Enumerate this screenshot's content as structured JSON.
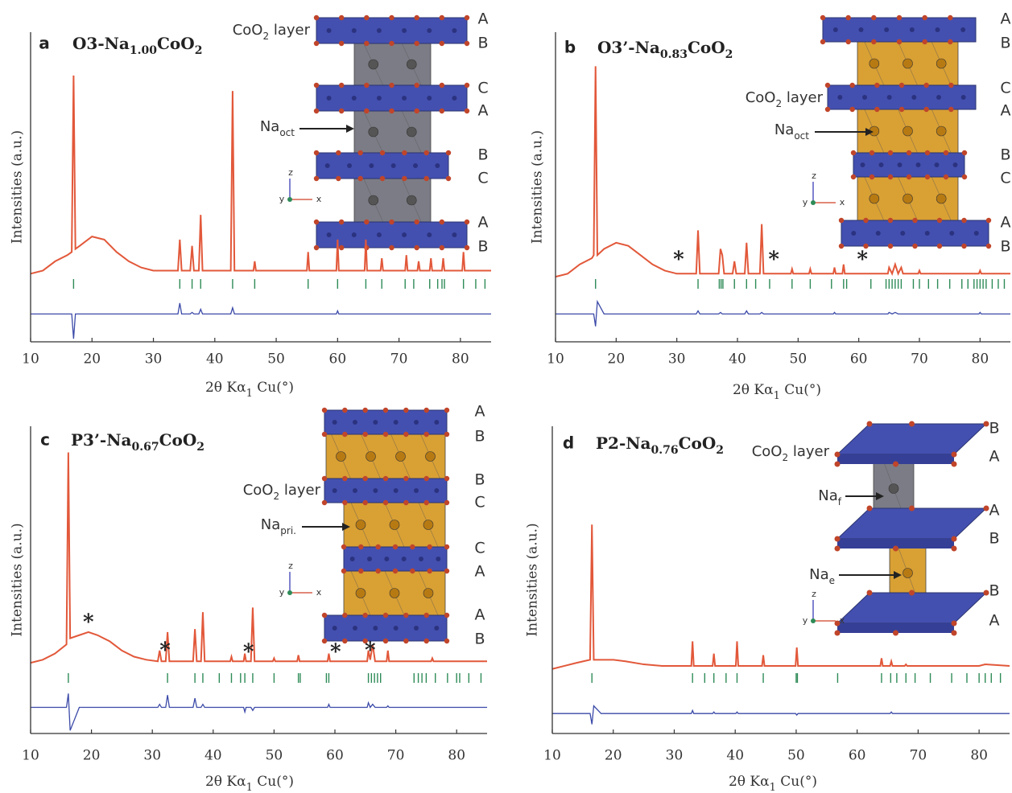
{
  "chart_data": [
    {
      "type": "line",
      "label": "a",
      "title": [
        {
          "text": "O3-Na"
        },
        {
          "text": "1.00",
          "sub": true
        },
        {
          "text": "CoO"
        },
        {
          "text": "2",
          "sub": true
        }
      ],
      "x_label": [
        {
          "text": "2θ Kα"
        },
        {
          "text": "1",
          "sub": true
        },
        {
          "text": " Cu(°)"
        }
      ],
      "y_label": "Intensities (a.u.)",
      "xlim": [
        10,
        85
      ],
      "xticks": [
        10,
        20,
        30,
        40,
        50,
        60,
        70,
        80
      ],
      "ylim": [
        0,
        100
      ],
      "x": [
        10,
        12,
        14,
        16,
        16.7,
        17.0,
        17.3,
        18,
        20,
        22,
        24,
        26,
        28,
        30,
        34.0,
        34.3,
        34.6,
        36.0,
        36.3,
        36.6,
        37.4,
        37.7,
        38.0,
        42.6,
        42.9,
        43.2,
        46.3,
        46.5,
        46.7,
        55.0,
        55.2,
        55.4,
        59.8,
        60.0,
        60.2,
        64.4,
        64.6,
        64.8,
        67.0,
        67.2,
        67.4,
        71.0,
        71.2,
        71.4,
        73.0,
        73.2,
        73.4,
        75.0,
        75.2,
        75.4,
        77.0,
        77.2,
        77.4,
        80.3,
        80.5,
        80.7,
        85
      ],
      "series": [
        {
          "color": "#e2583a",
          "values": [
            22,
            23,
            26,
            28,
            29,
            86,
            30,
            31,
            34,
            33,
            29,
            26,
            24,
            23,
            23,
            33,
            23,
            23,
            31,
            23,
            23,
            41,
            23,
            23,
            81,
            23,
            23,
            26,
            23,
            23,
            29,
            23,
            23,
            33,
            23,
            23,
            33,
            23,
            23,
            27,
            23,
            23,
            28,
            23,
            23,
            26,
            23,
            23,
            27,
            23,
            23,
            27,
            23,
            23,
            29,
            23,
            23
          ]
        },
        {
          "color": "#3b4aa8",
          "values": [
            9,
            9,
            9,
            9,
            9,
            1,
            9,
            9,
            9,
            9,
            9,
            9,
            9,
            9,
            9,
            12.5,
            9,
            9,
            9.5,
            9,
            9,
            10.5,
            9,
            9,
            11,
            9,
            9,
            9,
            9,
            9,
            9,
            9,
            9,
            10,
            9,
            9,
            9,
            9,
            9,
            9,
            9,
            9,
            9,
            9,
            9,
            9,
            9,
            9,
            9,
            9,
            9,
            9,
            9,
            9,
            9,
            9,
            9
          ]
        }
      ],
      "bragg": {
        "color": "#2e8b57",
        "positions": [
          17,
          34.3,
          36.3,
          37.7,
          42.9,
          46.5,
          55.2,
          60,
          64.6,
          67.2,
          71,
          72.4,
          75,
          76.3,
          77,
          77.4,
          80.5,
          82.5,
          84
        ]
      },
      "annotations": [],
      "structure": {
        "layer_label": [
          {
            "text": "CoO"
          },
          {
            "text": "2",
            "sub": true
          },
          {
            "text": " layer"
          }
        ],
        "site_labels": [
          [
            {
              "text": "Na"
            },
            {
              "text": "oct",
              "sub": true
            }
          ]
        ],
        "stacking": [
          "A",
          "B",
          "C",
          "A",
          "B",
          "C",
          "A",
          "B"
        ],
        "axes": [
          "z",
          "y",
          "x"
        ]
      }
    },
    {
      "type": "line",
      "label": "b",
      "title": [
        {
          "text": "O3’-Na"
        },
        {
          "text": "0.83",
          "sub": true
        },
        {
          "text": "CoO"
        },
        {
          "text": "2",
          "sub": true
        }
      ],
      "x_label": [
        {
          "text": "2θ Kα"
        },
        {
          "text": "1",
          "sub": true
        },
        {
          "text": " Cu(°)"
        }
      ],
      "y_label": "Intensities (a.u.)",
      "xlim": [
        10,
        85
      ],
      "xticks": [
        10,
        20,
        30,
        40,
        50,
        60,
        70,
        80
      ],
      "ylim": [
        0,
        100
      ],
      "x": [
        10,
        12,
        14,
        16,
        16.3,
        16.6,
        16.9,
        18,
        20,
        22,
        24,
        26,
        28,
        30,
        33.2,
        33.5,
        33.8,
        36.9,
        37.2,
        37.5,
        37.8,
        39.2,
        39.5,
        39.8,
        41.2,
        41.5,
        41.8,
        43.7,
        44.0,
        44.3,
        48.8,
        49.0,
        49.2,
        51.8,
        52.0,
        52.2,
        55.8,
        56.0,
        56.2,
        57.3,
        57.5,
        57.7,
        64.8,
        65.0,
        65.5,
        66.0,
        66.5,
        67.0,
        67.3,
        69.8,
        70.0,
        70.2,
        79.8,
        80.0,
        80.2,
        85
      ],
      "series": [
        {
          "color": "#e2583a",
          "values": [
            21,
            22,
            25,
            27,
            28,
            89,
            28,
            30,
            32,
            31,
            28,
            25,
            23,
            22,
            22,
            36,
            22,
            22,
            30,
            28,
            22,
            22,
            26,
            22,
            22,
            32,
            22,
            22,
            38,
            22,
            22,
            23.5,
            22,
            22,
            23.5,
            22,
            22,
            24,
            22,
            22,
            25,
            22,
            22,
            24,
            22,
            25,
            22,
            24,
            22,
            22,
            23,
            22,
            22,
            23,
            22,
            22
          ]
        },
        {
          "color": "#3b4aa8",
          "values": [
            9,
            9,
            9,
            9,
            9,
            5,
            13,
            9,
            9,
            9,
            9,
            9,
            9,
            9,
            9,
            10,
            9,
            9,
            9.5,
            9,
            9,
            9,
            9,
            9,
            9,
            10,
            9,
            9,
            9.5,
            9,
            9,
            9,
            9,
            9,
            9,
            9,
            9,
            9.5,
            9,
            9,
            9,
            9,
            9,
            9.5,
            9,
            9.5,
            9,
            9,
            9,
            9,
            9,
            9,
            9,
            9.5,
            9,
            9
          ]
        }
      ],
      "bragg": {
        "color": "#2e8b57",
        "positions": [
          16.6,
          33.5,
          37,
          37.3,
          37.6,
          39.5,
          41.5,
          43,
          45.3,
          49,
          52,
          55.5,
          57.5,
          58,
          62,
          64.5,
          65,
          65.5,
          66,
          66.5,
          67,
          69,
          70,
          71.5,
          73,
          75,
          77,
          78,
          79,
          79.5,
          80,
          80.5,
          81,
          82,
          83,
          84
        ]
      },
      "annotations": [
        {
          "text": "*",
          "x": 30.3,
          "y": 26.8
        },
        {
          "text": "*",
          "x": 46,
          "y": 26.8
        },
        {
          "text": "*",
          "x": 60.6,
          "y": 26.8
        }
      ],
      "structure": {
        "layer_label": [
          {
            "text": "CoO"
          },
          {
            "text": "2",
            "sub": true
          },
          {
            "text": " layer"
          }
        ],
        "site_labels": [
          [
            {
              "text": "Na"
            },
            {
              "text": "oct",
              "sub": true
            }
          ]
        ],
        "stacking": [
          "A",
          "B",
          "C",
          "A",
          "B",
          "C",
          "A",
          "B"
        ],
        "axes": [
          "z",
          "y",
          "x"
        ]
      }
    },
    {
      "type": "line",
      "label": "c",
      "title": [
        {
          "text": "P3’-Na"
        },
        {
          "text": "0.67",
          "sub": true
        },
        {
          "text": "CoO"
        },
        {
          "text": "2",
          "sub": true
        }
      ],
      "x_label": [
        {
          "text": "2θ Kα"
        },
        {
          "text": "1",
          "sub": true
        },
        {
          "text": " Cu(°)"
        }
      ],
      "y_label": "Intensities (a.u.)",
      "xlim": [
        10,
        85
      ],
      "xticks": [
        10,
        20,
        30,
        40,
        50,
        60,
        70,
        80
      ],
      "ylim": [
        0,
        100
      ],
      "x": [
        10,
        12,
        14,
        15.9,
        16.2,
        16.5,
        18,
        19.5,
        21,
        23,
        25,
        27,
        29,
        30.9,
        31.2,
        31.5,
        32.2,
        32.5,
        32.8,
        36.7,
        37.0,
        37.3,
        38.0,
        38.3,
        38.6,
        42.8,
        43.0,
        43.2,
        45.0,
        45.2,
        45.4,
        46.2,
        46.5,
        46.8,
        49.8,
        50.0,
        50.2,
        53.8,
        54.0,
        54.2,
        58.8,
        59.0,
        59.2,
        65.3,
        65.5,
        65.8,
        66.2,
        66.6,
        68.5,
        68.7,
        68.9,
        75.8,
        76.0,
        76.2,
        85
      ],
      "series": [
        {
          "color": "#e2583a",
          "values": [
            23,
            24,
            26,
            29,
            91.5,
            31,
            32,
            33,
            32,
            30,
            27,
            25,
            24,
            23.5,
            27,
            23.5,
            23.5,
            33,
            23.5,
            23.5,
            34,
            23.5,
            23.5,
            39.5,
            23.5,
            23.5,
            25,
            23.5,
            23.5,
            26,
            23.5,
            23.5,
            41,
            23.5,
            23.5,
            24.5,
            23.5,
            23.5,
            25.5,
            23.5,
            23.5,
            26,
            23.5,
            23.5,
            27,
            24,
            29,
            23.5,
            23.5,
            27,
            23.5,
            23.5,
            24.5,
            23.5,
            23.5
          ]
        },
        {
          "color": "#3b4aa8",
          "values": [
            8.5,
            8.5,
            8.5,
            8.5,
            13,
            1,
            8.5,
            8.5,
            8.5,
            8.5,
            8.5,
            8.5,
            8.5,
            8.5,
            9.5,
            8.5,
            8.5,
            12.5,
            8.5,
            8.5,
            11.5,
            8.5,
            8.5,
            9.5,
            8.5,
            8.5,
            8.5,
            8.5,
            8.5,
            7,
            8.5,
            8.5,
            7.5,
            8.5,
            8.5,
            8.5,
            8.5,
            8.5,
            8.5,
            8.5,
            8.5,
            9.5,
            8.5,
            8.5,
            10,
            8.5,
            9.5,
            8.5,
            8.5,
            9,
            8.5,
            8.5,
            8.5,
            8.5,
            8.5
          ]
        }
      ],
      "bragg": {
        "color": "#2e8b57",
        "positions": [
          16.2,
          32.5,
          37,
          38.3,
          41,
          43,
          44.5,
          45.2,
          46.5,
          50,
          54,
          54.3,
          58.6,
          59,
          65.5,
          66,
          66.5,
          67,
          67.5,
          73,
          73.7,
          74.3,
          75,
          76.5,
          78.5,
          80,
          80.5,
          82,
          84
        ]
      },
      "annotations": [
        {
          "text": "*",
          "x": 19.5,
          "y": 36.4
        },
        {
          "text": "*",
          "x": 32.1,
          "y": 27.2
        },
        {
          "text": "*",
          "x": 45.8,
          "y": 26.7
        },
        {
          "text": "*",
          "x": 60.1,
          "y": 26.7
        },
        {
          "text": "*",
          "x": 65.8,
          "y": 27.2
        }
      ],
      "structure": {
        "layer_label": [
          {
            "text": "CoO"
          },
          {
            "text": "2",
            "sub": true
          },
          {
            "text": " layer"
          }
        ],
        "site_labels": [
          [
            {
              "text": "Na"
            },
            {
              "text": "pri.",
              "sub": true
            }
          ]
        ],
        "stacking": [
          "A",
          "B",
          "B",
          "C",
          "C",
          "A",
          "A",
          "B"
        ],
        "axes": [
          "z",
          "y",
          "x"
        ]
      }
    },
    {
      "type": "line",
      "label": "d",
      "title": [
        {
          "text": "P2-Na"
        },
        {
          "text": "0.76",
          "sub": true
        },
        {
          "text": "CoO"
        },
        {
          "text": "2",
          "sub": true
        }
      ],
      "x_label": [
        {
          "text": "2θ Kα"
        },
        {
          "text": "1",
          "sub": true
        },
        {
          "text": " Cu(°)"
        }
      ],
      "y_label": "Intensities (a.u.)",
      "xlim": [
        10,
        85
      ],
      "xticks": [
        10,
        20,
        30,
        40,
        50,
        60,
        70,
        80
      ],
      "ylim": [
        0,
        100
      ],
      "x": [
        10,
        12,
        14,
        16.2,
        16.5,
        16.8,
        18,
        20,
        22,
        25,
        28,
        32.8,
        33.0,
        33.2,
        36.3,
        36.5,
        36.7,
        40.1,
        40.3,
        40.5,
        44.4,
        44.6,
        44.8,
        49.9,
        50.1,
        50.3,
        63.8,
        64.0,
        64.2,
        65.4,
        65.6,
        65.8,
        67.8,
        68.0,
        68.2,
        75.5,
        80,
        81,
        85
      ],
      "series": [
        {
          "color": "#e2583a",
          "values": [
            21,
            22,
            23,
            24,
            68,
            24,
            24,
            24,
            23.5,
            22.5,
            22,
            22,
            30,
            22,
            22,
            26,
            22,
            22,
            30,
            22,
            22,
            25.5,
            22,
            22,
            28,
            22,
            22,
            24.5,
            22,
            22,
            23.5,
            22,
            22,
            22.5,
            22,
            22,
            22,
            22.5,
            22
          ]
        },
        {
          "color": "#3b4aa8",
          "values": [
            6.5,
            6.5,
            6.5,
            6.5,
            3,
            9,
            6.5,
            6.5,
            6.5,
            6.5,
            6.5,
            6.5,
            7.5,
            6.5,
            6.5,
            7,
            6.5,
            6.5,
            7,
            6.5,
            6.5,
            6.5,
            6.5,
            6.5,
            6,
            6.5,
            6.5,
            6.5,
            6.5,
            6.5,
            7,
            6.5,
            6.5,
            6.5,
            6.5,
            6.5,
            6.5,
            6.5,
            6.5
          ]
        }
      ],
      "bragg": {
        "color": "#2e8b57",
        "positions": [
          16.5,
          33,
          35,
          36.5,
          38.5,
          40.3,
          44.6,
          50,
          50.2,
          56.8,
          64,
          65.5,
          66.5,
          68,
          69.5,
          72,
          75.5,
          78,
          80,
          81,
          82,
          83.5
        ]
      },
      "annotations": [],
      "structure": {
        "layer_label": [
          {
            "text": "CoO"
          },
          {
            "text": "2",
            "sub": true
          },
          {
            "text": " layer"
          }
        ],
        "site_labels": [
          [
            {
              "text": "Na"
            },
            {
              "text": "f",
              "sub": true
            }
          ],
          [
            {
              "text": "Na"
            },
            {
              "text": "e",
              "sub": true
            }
          ]
        ],
        "stacking": [
          "B",
          "A",
          "A",
          "B",
          "B",
          "A"
        ],
        "axes": [
          "z",
          "y",
          "x"
        ]
      }
    }
  ]
}
